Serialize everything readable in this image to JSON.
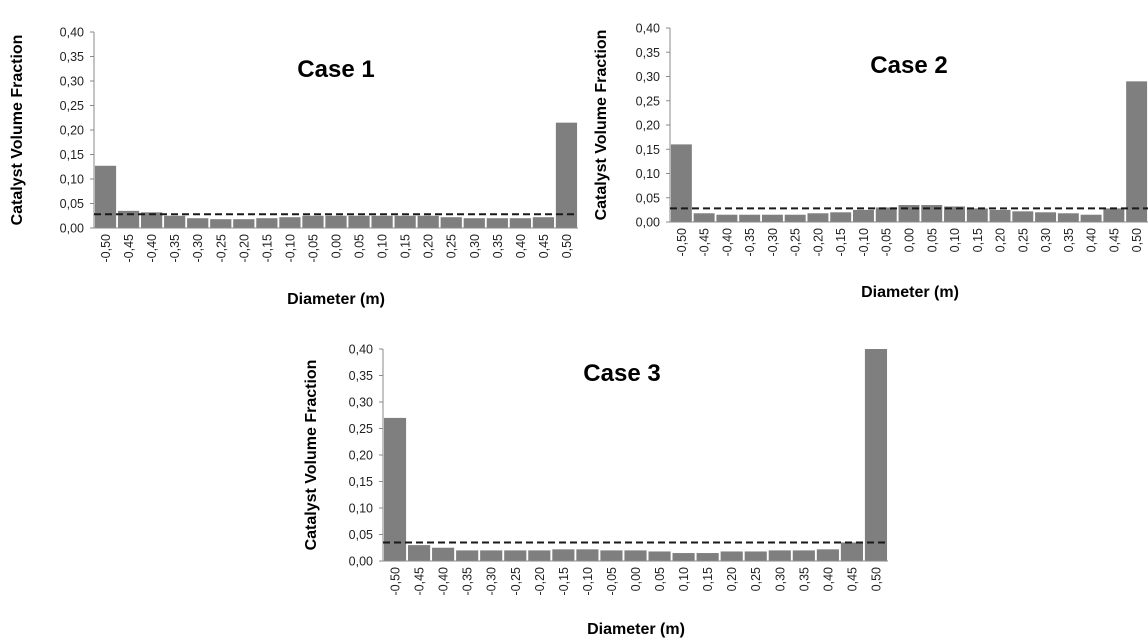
{
  "colors": {
    "bar": "#7f7f7f",
    "reference_line": "#1a1a1a",
    "axis": "#8a8a8a"
  },
  "chart_data": [
    {
      "type": "bar",
      "title": "Case 1",
      "xlabel": "Diameter (m)",
      "ylabel": "Catalyst  Volume  Fraction",
      "ylim": [
        0,
        0.4
      ],
      "yticks": [
        "0,00",
        "0,05",
        "0,10",
        "0,15",
        "0,20",
        "0,25",
        "0,30",
        "0,35",
        "0,40"
      ],
      "categories": [
        "-0,50",
        "-0,45",
        "-0,40",
        "-0,35",
        "-0,30",
        "-0,25",
        "-0,20",
        "-0,15",
        "-0,10",
        "-0,05",
        "0,00",
        "0,05",
        "0,10",
        "0,15",
        "0,20",
        "0,25",
        "0,30",
        "0,35",
        "0,40",
        "0,45",
        "0,50"
      ],
      "values": [
        0.127,
        0.035,
        0.032,
        0.025,
        0.02,
        0.018,
        0.018,
        0.02,
        0.022,
        0.025,
        0.025,
        0.025,
        0.025,
        0.025,
        0.025,
        0.022,
        0.02,
        0.02,
        0.02,
        0.022,
        0.215
      ],
      "reference_line": {
        "style": "dashed",
        "value": 0.028
      },
      "grid": false,
      "legend": "none"
    },
    {
      "type": "bar",
      "title": "Case 2",
      "xlabel": "Diameter (m)",
      "ylabel": "Catalyst  Volume  Fraction",
      "ylim": [
        0,
        0.4
      ],
      "yticks": [
        "0,00",
        "0,05",
        "0,10",
        "0,15",
        "0,20",
        "0,25",
        "0,30",
        "0,35",
        "0,40"
      ],
      "categories": [
        "-0,50",
        "-0,45",
        "-0,40",
        "-0,35",
        "-0,30",
        "-0,25",
        "-0,20",
        "-0,15",
        "-0,10",
        "-0,05",
        "0,00",
        "0,05",
        "0,10",
        "0,15",
        "0,20",
        "0,25",
        "0,30",
        "0,35",
        "0,40",
        "0,45",
        "0,50"
      ],
      "values": [
        0.16,
        0.018,
        0.015,
        0.015,
        0.015,
        0.015,
        0.018,
        0.02,
        0.025,
        0.03,
        0.035,
        0.035,
        0.032,
        0.028,
        0.025,
        0.022,
        0.02,
        0.018,
        0.015,
        0.028,
        0.29
      ],
      "reference_line": {
        "style": "dashed",
        "value": 0.028
      },
      "grid": false,
      "legend": "none"
    },
    {
      "type": "bar",
      "title": "Case 3",
      "xlabel": "Diameter (m)",
      "ylabel": "Catalyst  Volume  Fraction",
      "ylim": [
        0,
        0.4
      ],
      "yticks": [
        "0,00",
        "0,05",
        "0,10",
        "0,15",
        "0,20",
        "0,25",
        "0,30",
        "0,35",
        "0,40"
      ],
      "categories": [
        "-0,50",
        "-0,45",
        "-0,40",
        "-0,35",
        "-0,30",
        "-0,25",
        "-0,20",
        "-0,15",
        "-0,10",
        "-0,05",
        "0,00",
        "0,05",
        "0,10",
        "0,15",
        "0,20",
        "0,25",
        "0,30",
        "0,35",
        "0,40",
        "0,45",
        "0,50"
      ],
      "values": [
        0.27,
        0.03,
        0.025,
        0.02,
        0.02,
        0.02,
        0.02,
        0.022,
        0.022,
        0.02,
        0.02,
        0.018,
        0.015,
        0.015,
        0.018,
        0.018,
        0.02,
        0.02,
        0.022,
        0.035,
        0.4
      ],
      "reference_line": {
        "style": "dashed",
        "value": 0.035
      },
      "grid": false,
      "legend": "none"
    }
  ]
}
